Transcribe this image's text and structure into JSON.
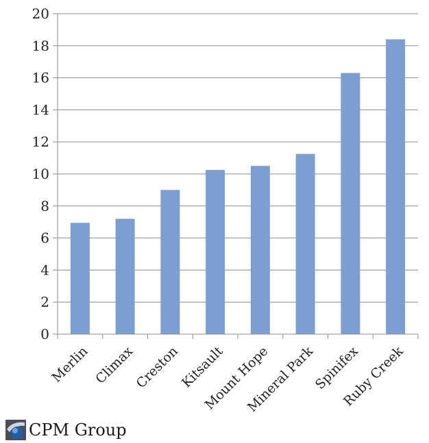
{
  "chart_data": {
    "type": "bar",
    "categories": [
      "Merlin",
      "Climax",
      "Creston",
      "Kitsault",
      "Mount Hope",
      "Mineral Park",
      "Spinifex",
      "Ruby Creek"
    ],
    "values": [
      6.95,
      7.2,
      9.0,
      10.25,
      10.5,
      11.25,
      16.3,
      18.4
    ],
    "title": "",
    "xlabel": "",
    "ylabel": "",
    "ylim": [
      0,
      20
    ],
    "yticks": [
      0,
      2,
      4,
      6,
      8,
      10,
      12,
      14,
      16,
      18,
      20
    ],
    "grid": true,
    "bar_color": "#7b9fd1"
  },
  "footer": {
    "logo_icon": "cpm-group-logo-icon",
    "text": "CPM Group"
  }
}
